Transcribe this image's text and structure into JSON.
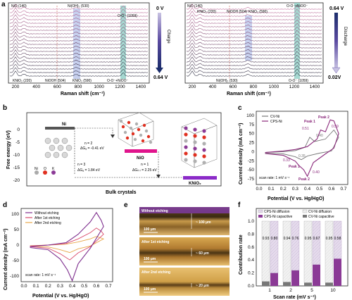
{
  "panels": {
    "a": {
      "letter": "a",
      "left": {
        "top_labels": [
          "NiO (140)",
          "Ni(OH)₂ (530)",
          "O-O⁻ (1059)"
        ],
        "bottom_labels": [
          "KNiO₂ (220)",
          "NiOOH (504)",
          "KNiO₂ (590)",
          "O-O⁻+NiOO⁻"
        ],
        "xlabel": "Raman shift (cm⁻¹)",
        "xticks": [
          "200",
          "400",
          "600",
          "800",
          "1000",
          "1200",
          "1400"
        ],
        "colorbar_top": "0 V",
        "colorbar_bottom": "0.64 V",
        "colorbar_word": "Charge"
      },
      "right": {
        "top_labels": [
          "NiO (140)",
          "KNiO₂ (220)",
          "NiOOH (504)",
          "KNiO₂ (590)",
          "O-O⁻+NiOO⁻"
        ],
        "bottom_labels": [
          "Ni(OH)₂ (530)",
          "O-O⁻ (1059)"
        ],
        "xlabel": "Raman shift (cm⁻¹)",
        "xticks": [
          "200",
          "400",
          "600",
          "800",
          "1000",
          "1200",
          "1400"
        ],
        "colorbar_top": "0.64 V",
        "colorbar_bottom": "0.02V",
        "colorbar_word": "Discharge"
      }
    },
    "b": {
      "letter": "b",
      "ylabel": "Free energy (eV)",
      "yticks": [
        "0",
        "-5",
        "-10",
        "-15",
        "-20"
      ],
      "xlabel": "Bulk crystals",
      "species": {
        "ni": "Ni",
        "nio": "NiO",
        "knio2": "KNiO₂"
      },
      "steps": [
        {
          "n": "n = 2",
          "dg": "ΔGₐ = -0.41 eV"
        },
        {
          "n": "n = 3",
          "dg": "ΔGₐ = 1.84 eV"
        },
        {
          "n": "n = 1",
          "dg": "ΔG₍ₖ₎ = 2.25 eV"
        }
      ],
      "legend": {
        "ni": "Ni",
        "o": "O",
        "k": "K"
      }
    },
    "c": {
      "letter": "c",
      "ylabel": "Current density (mA cm⁻²)",
      "xlabel": "Potential (V vs. Hg/HgO)",
      "yticks": [
        "100",
        "75",
        "50",
        "25",
        "0",
        "-25",
        "-50",
        "-75"
      ],
      "xticks": [
        "0.0",
        "0.1",
        "0.2",
        "0.3",
        "0.4",
        "0.5",
        "0.6",
        "0.7"
      ],
      "legend": [
        "CV-Ni",
        "CPS-Ni"
      ],
      "note": "scan rate: 1 mV s⁻¹",
      "annotations": {
        "peak1_top": "Peak 1",
        "peak2_top": "Peak 2",
        "v051": "0.51",
        "v059": "0.59",
        "v040_top": "0.40",
        "v035": "0.35",
        "v033": "0.33",
        "peak1_bot": "Peak 1",
        "v040_bot": "0.40",
        "peak2_bot": "Peak 2"
      },
      "colors": {
        "cv": "#777777",
        "cps": "#8b2a7c"
      }
    },
    "d": {
      "letter": "d",
      "ylabel": "Current density (mA cm⁻²)",
      "xlabel": "Potential (V vs. Hg/HgO)",
      "yticks": [
        "100",
        "50",
        "0",
        "-50",
        "-100"
      ],
      "xticks": [
        "0.0",
        "0.1",
        "0.2",
        "0.3",
        "0.4",
        "0.5",
        "0.6",
        "0.7"
      ],
      "legend": [
        "Without etching",
        "After 1st etching",
        "After 2nd etching"
      ],
      "note": "scan rate: 1 mV s⁻¹",
      "colors": {
        "without": "#7e2f8e",
        "first": "#d94a6a",
        "second": "#e8a84c"
      }
    },
    "e": {
      "letter": "e",
      "images": [
        {
          "title": "Without etching",
          "scale": "100 μm",
          "thickness": "~ 100 μm"
        },
        {
          "title": "After 1st etching",
          "scale": "100 μm",
          "thickness": "~ 60 μm"
        },
        {
          "title": "After 2nd etching",
          "scale": "100 μm",
          "thickness": "~ 20 μm"
        }
      ]
    },
    "f": {
      "letter": "f",
      "ylabel": "Contribution rate",
      "xlabel": "Scan rate (mV s⁻¹)",
      "yticks": [
        "1.0",
        "0.8",
        "0.6",
        "0.4",
        "0.2",
        "0.0"
      ],
      "legend": [
        "CPS-Ni diffusion",
        "CPS-Ni capacitive",
        "CV-Ni diffusion",
        "CV-Ni capacitive"
      ],
      "chart_data": {
        "type": "bar",
        "categories": [
          "1",
          "2",
          "5",
          "10"
        ],
        "series": [
          {
            "name": "CPS-Ni diffusion",
            "values": [
              0.8,
              0.76,
              0.67,
              0.58
            ]
          },
          {
            "name": "CPS-Ni capacitive",
            "values": [
              0.2,
              0.24,
              0.33,
              0.42
            ]
          },
          {
            "name": "CV-Ni diffusion",
            "values": [
              0.93,
              0.94,
              0.95,
              0.95
            ]
          },
          {
            "name": "CV-Ni capacitive",
            "values": [
              0.07,
              0.06,
              0.05,
              0.05
            ]
          }
        ],
        "cv_labels": [
          "0.93",
          "0.94",
          "0.95",
          "0.95"
        ],
        "cps_labels": [
          "0.80",
          "0.76",
          "0.67",
          "0.58"
        ],
        "ylim": [
          0,
          1
        ],
        "colors": {
          "cps_cap": "#8b3a96",
          "cps_diff": "#e6dced",
          "cv_cap": "#777777",
          "cv_diff": "#f0f0f0"
        }
      }
    }
  }
}
